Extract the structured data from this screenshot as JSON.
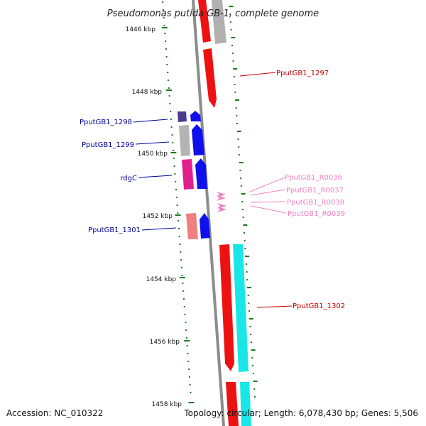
{
  "title": "Pseudomonas putida GB-1, complete genome",
  "accession": "Accession: NC_010322",
  "summary": "Topology: circular; Length: 6,078,430 bp; Genes: 5,506",
  "ruler": {
    "tick_labels": [
      "1446 kbp",
      "1448 kbp",
      "1450 kbp",
      "1452 kbp",
      "1454 kbp",
      "1456 kbp",
      "1458 kbp"
    ],
    "tick_color": "#1a7a1a"
  },
  "colors": {
    "backbone": "#8c8c8c",
    "label_blue": "#00009c",
    "label_red": "#c80000",
    "label_pink": "#f080c0"
  },
  "gene_labels": [
    {
      "text": "PputGB1_1297",
      "color": "#c80000"
    },
    {
      "text": "PputGB1_1298",
      "color": "#00009c"
    },
    {
      "text": "PputGB1_1299",
      "color": "#00009c"
    },
    {
      "text": "rdgC",
      "color": "#00009c"
    },
    {
      "text": "PputGB1_R0036",
      "color": "#f080c0"
    },
    {
      "text": "PputGB1_R0037",
      "color": "#f080c0"
    },
    {
      "text": "PputGB1_R0038",
      "color": "#f080c0"
    },
    {
      "text": "PputGB1_R0039",
      "color": "#f080c0"
    },
    {
      "text": "PputGB1_1301",
      "color": "#00009c"
    },
    {
      "text": "PputGB1_1302",
      "color": "#c80000"
    }
  ]
}
